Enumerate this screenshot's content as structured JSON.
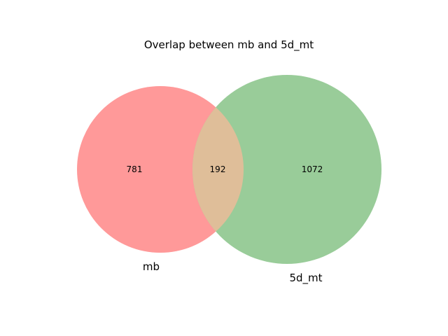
{
  "title": "Overlap between mb and 5d_mt",
  "colors": {
    "set_a": "#ff9999",
    "set_b": "#99cc99",
    "intersection": "#dfbe99"
  },
  "sets": {
    "a": {
      "name": "mb",
      "only_count": "781"
    },
    "b": {
      "name": "5d_mt",
      "only_count": "1072"
    },
    "intersection_count": "192"
  }
}
